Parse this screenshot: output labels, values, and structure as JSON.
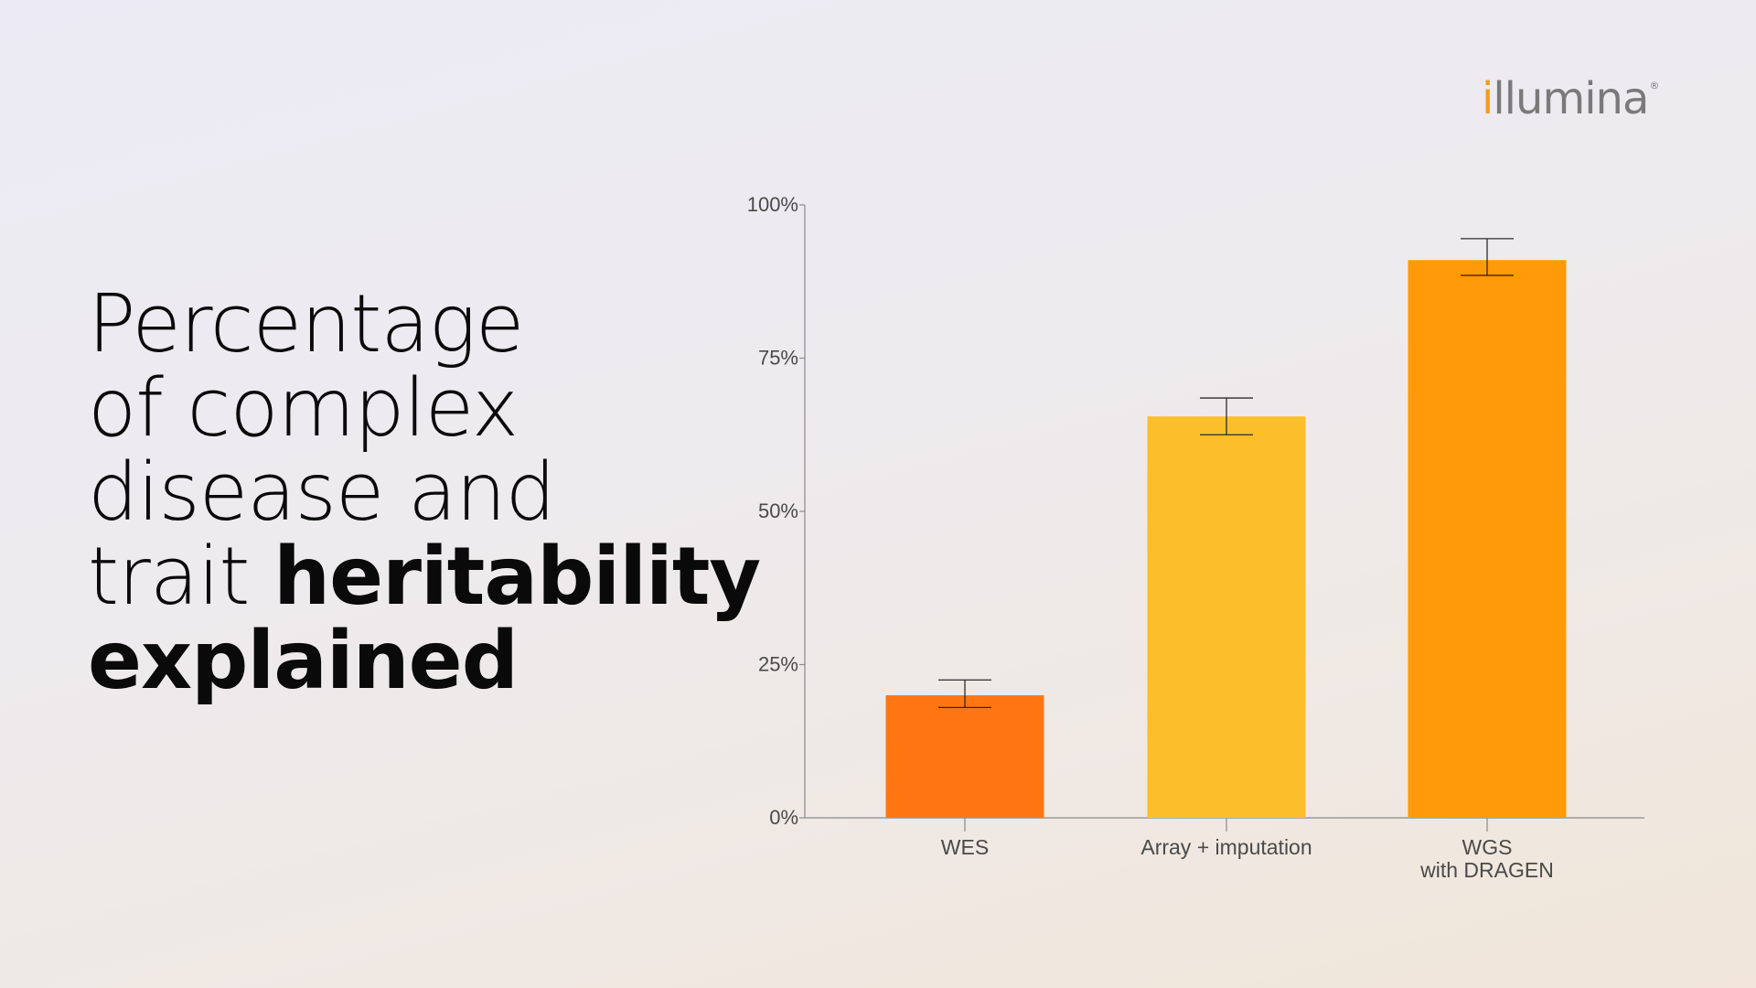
{
  "brand": {
    "logo_text": "illumina",
    "logo_first_letter": "i",
    "logo_rest": "llumina",
    "registered_mark": "®",
    "accent_color": "#f39a1d"
  },
  "headline": {
    "line1": "Percentage",
    "line2": "of complex",
    "line3": "disease and",
    "line4_light": "trait ",
    "line4_bold": "heritability",
    "line5_bold": "explained"
  },
  "chart_data": {
    "type": "bar",
    "title": "",
    "xlabel": "",
    "ylabel": "",
    "ylim": [
      0,
      100
    ],
    "yticks": [
      0,
      25,
      50,
      75,
      100
    ],
    "ytick_labels": [
      "0%",
      "25%",
      "50%",
      "75%",
      "100%"
    ],
    "categories": [
      "WES",
      "Array + imputation",
      "WGS\nwith DRAGEN"
    ],
    "category_lines": [
      [
        "WES"
      ],
      [
        "Array + imputation"
      ],
      [
        "WGS",
        "with DRAGEN"
      ]
    ],
    "values": [
      20,
      65.5,
      91
    ],
    "error_low": [
      18,
      62.5,
      88.5
    ],
    "error_high": [
      22.5,
      68.5,
      94.5
    ],
    "colors": [
      "#ff7612",
      "#fcbf2c",
      "#ff9a08"
    ],
    "grid": false,
    "legend": "none"
  }
}
